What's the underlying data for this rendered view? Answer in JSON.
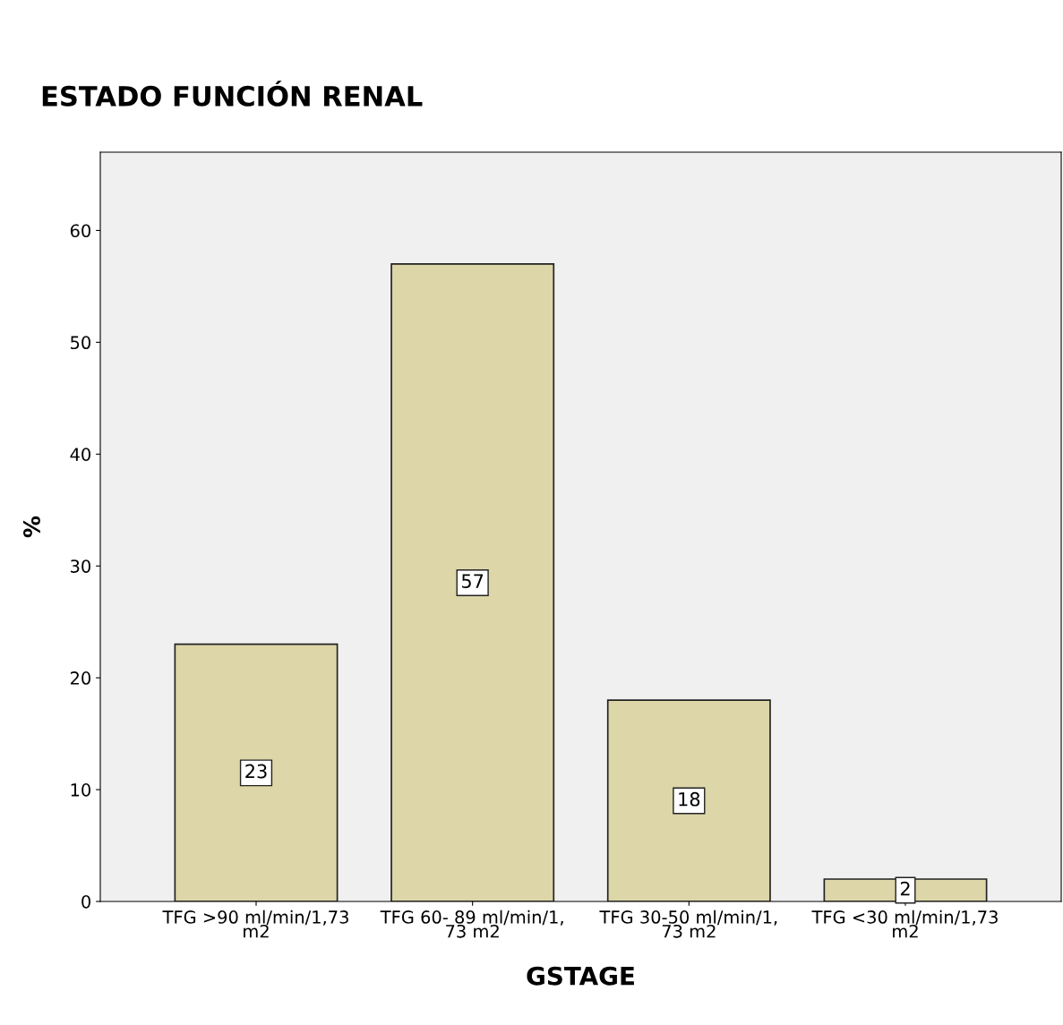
{
  "chart_data": {
    "type": "bar",
    "title": "ESTADO FUNCIÓN RENAL",
    "xlabel": "GSTAGE",
    "ylabel": "%",
    "categories": [
      "TFG >90 ml/min/1,73\nm2",
      "TFG 60- 89 ml/min/1,\n73 m2",
      "TFG 30-50 ml/min/1,\n73 m2",
      "TFG <30 ml/min/1,73\nm2"
    ],
    "values": [
      23,
      57,
      18,
      2
    ],
    "color": "#dcd6a8",
    "ylim": [
      0,
      67
    ],
    "yticks": [
      0,
      10,
      20,
      30,
      40,
      50,
      60
    ],
    "grid": false,
    "data_labels": true
  }
}
